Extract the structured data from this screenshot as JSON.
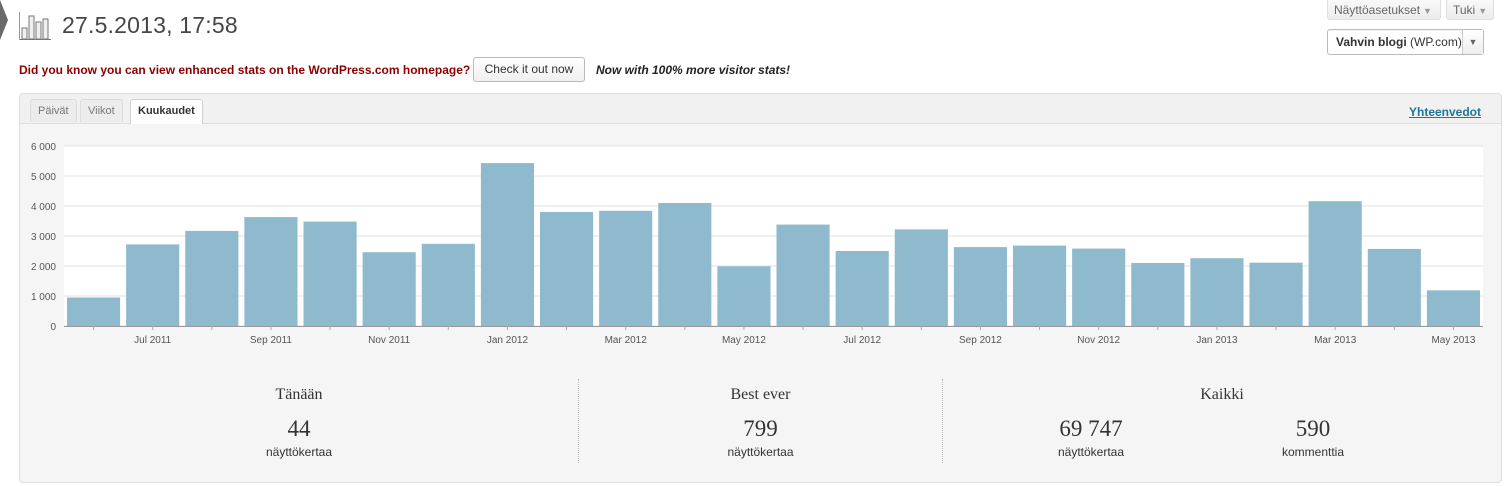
{
  "header": {
    "title": "27.5.2013, 17:58",
    "screen_options_label": "Näyttöasetukset",
    "help_label": "Tuki",
    "blog_select": {
      "name": "Vahvin blogi",
      "suffix": "(WP.com)"
    }
  },
  "notice": {
    "text": "Did you know you can view enhanced stats on the WordPress.com homepage?",
    "button_label": "Check it out now",
    "tagline": "Now with 100% more visitor stats!"
  },
  "tabs": [
    {
      "label": "Päivät",
      "active": false
    },
    {
      "label": "Viikot",
      "active": false
    },
    {
      "label": "Kuukaudet",
      "active": true
    }
  ],
  "summary_link": "Yhteenvedot",
  "chart_data": {
    "type": "bar",
    "categories": [
      "Jun 2011",
      "Jul 2011",
      "Aug 2011",
      "Sep 2011",
      "Oct 2011",
      "Nov 2011",
      "Dec 2011",
      "Jan 2012",
      "Feb 2012",
      "Mar 2012",
      "Apr 2012",
      "May 2012",
      "Jun 2012",
      "Jul 2012",
      "Aug 2012",
      "Sep 2012",
      "Oct 2012",
      "Nov 2012",
      "Dec 2012",
      "Jan 2013",
      "Feb 2013",
      "Mar 2013",
      "Apr 2013",
      "May 2013"
    ],
    "x_tick_labels": [
      "",
      "Jul 2011",
      "",
      "Sep 2011",
      "",
      "Nov 2011",
      "",
      "Jan 2012",
      "",
      "Mar 2012",
      "",
      "May 2012",
      "",
      "Jul 2012",
      "",
      "Sep 2012",
      "",
      "Nov 2012",
      "",
      "Jan 2013",
      "",
      "Mar 2013",
      "",
      "May 2013"
    ],
    "values": [
      950,
      2720,
      3170,
      3630,
      3480,
      2460,
      2740,
      5430,
      3800,
      3840,
      4100,
      1990,
      3380,
      2500,
      3220,
      2630,
      2680,
      2580,
      2100,
      2260,
      2110,
      4160,
      2570,
      1190
    ],
    "ylim": [
      0,
      6000
    ],
    "y_ticks": [
      0,
      1000,
      2000,
      3000,
      4000,
      5000,
      6000
    ],
    "y_tick_labels": [
      "0",
      "1 000",
      "2 000",
      "3 000",
      "4 000",
      "5 000",
      "6 000"
    ],
    "grid": true,
    "bar_color": "#8fb9cd"
  },
  "stats": {
    "today": {
      "heading": "Tänään",
      "value": "44",
      "label": "näyttökertaa"
    },
    "best": {
      "heading": "Best ever",
      "value": "799",
      "label": "näyttökertaa"
    },
    "all": {
      "heading": "Kaikki",
      "views_value": "69 747",
      "views_label": "näyttökertaa",
      "comments_value": "590",
      "comments_label": "kommenttia"
    }
  }
}
